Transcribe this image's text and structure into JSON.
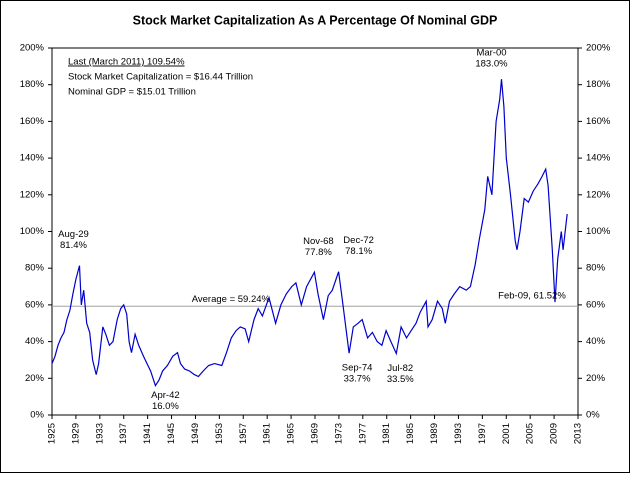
{
  "chart_data": {
    "type": "line",
    "title": "Stock Market Capitalization As A Percentage Of Nominal GDP",
    "info": [
      "Last (March 2011) 109.54%",
      "Stock Market Capitalization = $16.44 Trillion",
      "Nominal GDP = $15.01 Trillion"
    ],
    "color": "#0000cc",
    "x": [
      1925.0,
      1925.5,
      1926.0,
      1926.5,
      1927.0,
      1927.5,
      1928.0,
      1928.5,
      1929.0,
      1929.6,
      1929.9,
      1930.3,
      1930.8,
      1931.3,
      1931.8,
      1932.4,
      1932.8,
      1933.5,
      1934.0,
      1934.6,
      1935.2,
      1935.9,
      1936.5,
      1937.0,
      1937.5,
      1937.9,
      1938.3,
      1938.9,
      1939.5,
      1940.3,
      1940.9,
      1941.5,
      1942.3,
      1942.9,
      1943.5,
      1944.3,
      1945.2,
      1946.0,
      1946.5,
      1947.2,
      1948.0,
      1948.8,
      1949.5,
      1950.3,
      1951.2,
      1952.2,
      1953.4,
      1954.2,
      1955.0,
      1955.8,
      1956.5,
      1957.3,
      1957.9,
      1958.8,
      1959.5,
      1960.2,
      1961.3,
      1962.4,
      1963.3,
      1964.2,
      1965.1,
      1965.8,
      1966.7,
      1967.6,
      1968.9,
      1969.5,
      1970.4,
      1971.2,
      1971.9,
      1972.95,
      1973.6,
      1974.7,
      1975.4,
      1976.2,
      1976.9,
      1977.8,
      1978.6,
      1979.4,
      1980.2,
      1980.9,
      1981.7,
      1982.6,
      1983.4,
      1984.3,
      1985.1,
      1985.9,
      1986.6,
      1987.6,
      1987.9,
      1988.6,
      1989.5,
      1990.3,
      1990.8,
      1991.5,
      1992.3,
      1993.2,
      1994.3,
      1995.0,
      1995.8,
      1996.5,
      1997.4,
      1997.9,
      1998.6,
      1999.3,
      1999.9,
      2000.2,
      2000.6,
      2001.0,
      2001.7,
      2002.5,
      2002.8,
      2003.3,
      2004.0,
      2004.7,
      2005.5,
      2006.3,
      2007.0,
      2007.6,
      2008.0,
      2008.7,
      2009.15,
      2009.6,
      2010.2,
      2010.5,
      2011.0,
      2011.2
    ],
    "values": [
      28,
      32,
      38,
      42,
      45,
      52,
      57,
      66,
      74,
      81.4,
      60,
      68,
      50,
      45,
      30,
      22,
      28,
      48,
      44,
      38,
      40,
      52,
      58,
      60,
      55,
      40,
      34,
      44,
      38,
      32,
      28,
      24,
      16.0,
      19,
      24,
      27,
      32,
      34,
      28,
      25,
      24,
      22,
      21,
      24,
      27,
      28,
      27,
      34,
      42,
      46,
      48,
      47,
      40,
      52,
      58,
      54,
      64,
      50,
      60,
      66,
      70,
      72,
      60,
      70,
      77.8,
      66,
      52,
      65,
      68,
      78.1,
      62,
      33.7,
      48,
      50,
      52,
      42,
      45,
      40,
      38,
      46,
      40,
      33.5,
      48,
      42,
      46,
      50,
      56,
      62,
      48,
      52,
      62,
      58,
      50,
      62,
      66,
      70,
      68,
      70,
      82,
      96,
      112,
      130,
      120,
      160,
      172,
      183.0,
      168,
      140,
      120,
      95,
      90,
      100,
      118,
      116,
      122,
      126,
      130,
      134,
      125,
      90,
      61.52,
      85,
      100,
      90,
      104,
      109.54
    ],
    "xlim": [
      1925,
      2013
    ],
    "xticks": [
      1925,
      1929,
      1933,
      1937,
      1941,
      1945,
      1949,
      1953,
      1957,
      1961,
      1965,
      1969,
      1973,
      1977,
      1981,
      1985,
      1989,
      1993,
      1997,
      2001,
      2005,
      2009,
      2013
    ],
    "ylim": [
      0,
      200
    ],
    "yticks": [
      {
        "value": 0,
        "label": "0%"
      },
      {
        "value": 20,
        "label": "20%"
      },
      {
        "value": 40,
        "label": "40%"
      },
      {
        "value": 60,
        "label": "60%"
      },
      {
        "value": 80,
        "label": "80%"
      },
      {
        "value": 100,
        "label": "100%"
      },
      {
        "value": 120,
        "label": "120%"
      },
      {
        "value": 140,
        "label": "140%"
      },
      {
        "value": 160,
        "label": "160%"
      },
      {
        "value": 180,
        "label": "180%"
      },
      {
        "value": 200,
        "label": "200%"
      }
    ],
    "y2lim": [
      0,
      200
    ],
    "y2ticks": [
      {
        "value": 0,
        "label": "0%"
      },
      {
        "value": 20,
        "label": "20%"
      },
      {
        "value": 40,
        "label": "40%"
      },
      {
        "value": 60,
        "label": "60%"
      },
      {
        "value": 80,
        "label": "80%"
      },
      {
        "value": 100,
        "label": "100%"
      },
      {
        "value": 120,
        "label": "120%"
      },
      {
        "value": 140,
        "label": "140%"
      },
      {
        "value": 160,
        "label": "160%"
      },
      {
        "value": 180,
        "label": "180%"
      },
      {
        "value": 200,
        "label": "200%"
      }
    ],
    "reference_line": {
      "value": 59.24,
      "label": "Average = 59.24%",
      "color": "#a0a0a0"
    },
    "annotations": [
      {
        "text": [
          "Aug-29",
          "81.4%"
        ],
        "x": 1929.6,
        "y": 81.4
      },
      {
        "text": [
          "Nov-68",
          "77.8%"
        ],
        "x": 1968.9,
        "y": 77.8
      },
      {
        "text": [
          "Dec-72",
          "78.1%"
        ],
        "x": 1972.95,
        "y": 78.1
      },
      {
        "text": [
          "Mar-00",
          "183.0%"
        ],
        "x": 2000.2,
        "y": 183.0
      },
      {
        "text": [
          "Sep-74",
          "33.7%"
        ],
        "x": 1974.7,
        "y": 33.7
      },
      {
        "text": [
          "Jul-82",
          "33.5%"
        ],
        "x": 1982.6,
        "y": 33.5
      },
      {
        "text": [
          "Apr-42",
          "16.0%"
        ],
        "x": 1942.3,
        "y": 16.0
      },
      {
        "text": [
          "Feb-09, 61.52%"
        ],
        "x": 2009.15,
        "y": 61.52
      }
    ]
  }
}
